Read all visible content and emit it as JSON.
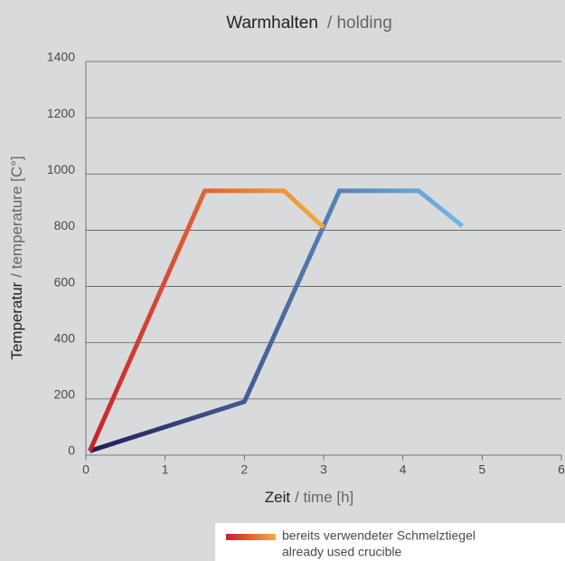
{
  "chart_data": {
    "type": "line",
    "title": {
      "main": "Warmhalten",
      "sub": "/ holding"
    },
    "xlabel": {
      "main": "Zeit",
      "sub": "/ time [h]"
    },
    "ylabel": {
      "main": "Temperatur",
      "sub": "/ temperature [C°]"
    },
    "xlim": [
      0,
      6
    ],
    "xticks": [
      0,
      1,
      2,
      3,
      4,
      5,
      6
    ],
    "ylim": [
      0,
      1400
    ],
    "yticks": [
      0,
      200,
      400,
      600,
      800,
      1000,
      1200,
      1400
    ],
    "grid": true,
    "series": [
      {
        "name": "bereits verwendeter Schmelztiegel",
        "name_en": "already used crucible",
        "color": [
          "#c8202f",
          "#f7ab3c"
        ],
        "x": [
          0.05,
          1.5,
          2.5,
          3.0
        ],
        "values": [
          15,
          940,
          940,
          810
        ]
      },
      {
        "color": [
          "#1f1d55",
          "#74b6e6"
        ],
        "x": [
          0.05,
          2.0,
          3.2,
          4.2,
          4.75
        ],
        "values": [
          15,
          190,
          940,
          940,
          815
        ]
      }
    ]
  }
}
